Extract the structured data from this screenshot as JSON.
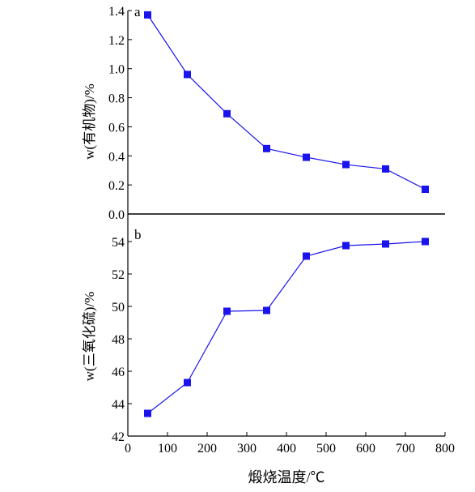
{
  "chart_data": [
    {
      "type": "line",
      "panel_label": "a",
      "ylabel": "w(有机物)/%",
      "ylim": [
        0.0,
        1.4
      ],
      "yticks": [
        0.0,
        0.2,
        0.4,
        0.6,
        0.8,
        1.0,
        1.2,
        1.4
      ],
      "ytick_labels": [
        "0.0",
        "0.2",
        "0.4",
        "0.6",
        "0.8",
        "1.0",
        "1.2",
        "1.4"
      ],
      "series": [
        {
          "x": [
            50,
            150,
            250,
            350,
            450,
            550,
            650,
            750
          ],
          "values": [
            1.37,
            0.96,
            0.69,
            0.45,
            0.39,
            0.34,
            0.31,
            0.17
          ],
          "color": "#1a13ee"
        }
      ]
    },
    {
      "type": "line",
      "panel_label": "b",
      "ylabel": "w(三氧化硫)/%",
      "xlabel": "煅烧温度/℃",
      "xlim": [
        0,
        800
      ],
      "xticks": [
        0,
        100,
        200,
        300,
        400,
        500,
        600,
        700,
        800
      ],
      "xtick_labels": [
        "0",
        "100",
        "200",
        "300",
        "400",
        "500",
        "600",
        "700",
        "800"
      ],
      "ylim": [
        42,
        54.5
      ],
      "yticks": [
        42,
        44,
        46,
        48,
        50,
        52,
        54
      ],
      "ytick_labels": [
        "42",
        "44",
        "46",
        "48",
        "50",
        "52",
        "54"
      ],
      "series": [
        {
          "x": [
            50,
            150,
            250,
            350,
            450,
            550,
            650,
            750
          ],
          "values": [
            43.4,
            45.3,
            49.7,
            49.75,
            53.1,
            53.75,
            53.85,
            54.0
          ],
          "color": "#1a13ee"
        }
      ]
    }
  ]
}
